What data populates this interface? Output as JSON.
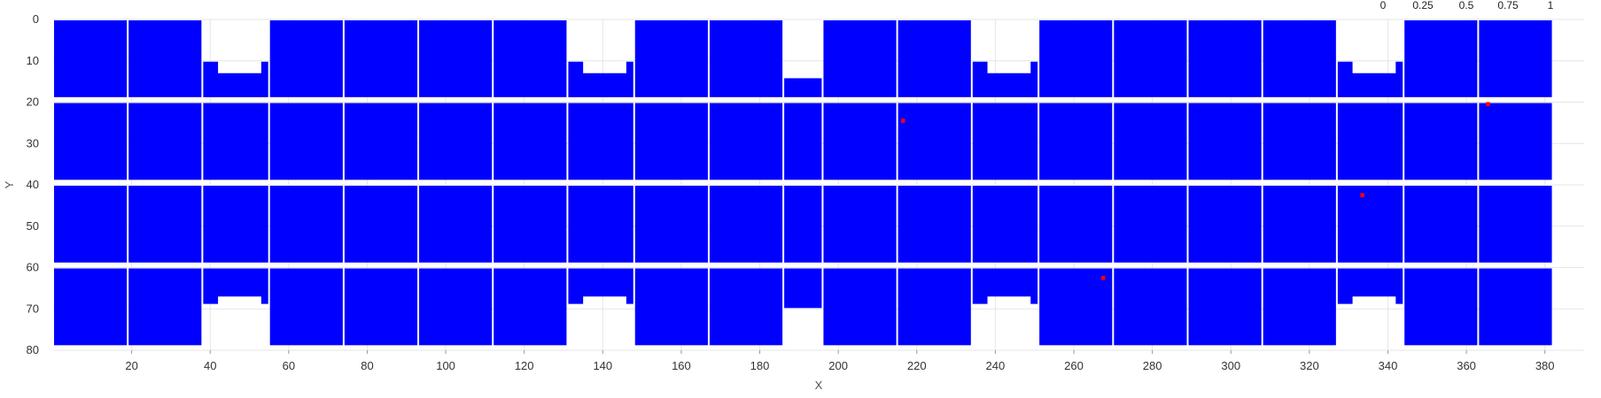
{
  "chart_data": {
    "type": "heatmap",
    "title": "",
    "xlabel": "X",
    "ylabel": "Y",
    "xlim": [
      0,
      390
    ],
    "ylim": [
      0,
      80
    ],
    "y_inverted": true,
    "grid": true,
    "x_ticks": [
      20,
      40,
      60,
      80,
      100,
      120,
      140,
      160,
      180,
      200,
      220,
      240,
      260,
      280,
      300,
      320,
      340,
      360,
      380
    ],
    "y_ticks": [
      0,
      10,
      20,
      30,
      40,
      50,
      60,
      70,
      80
    ],
    "color_scale": {
      "ticks": [
        "0",
        "0.25",
        "0.5",
        "0.75",
        "1"
      ],
      "low_color": "#0000ff",
      "high_color": "#ff0000"
    },
    "module_columns": [
      {
        "x": [
          1,
          19
        ],
        "type": "full"
      },
      {
        "x": [
          20,
          38
        ],
        "type": "full"
      },
      {
        "x": [
          39,
          55
        ],
        "type": "notched"
      },
      {
        "x": [
          56,
          74
        ],
        "type": "full"
      },
      {
        "x": [
          75,
          93
        ],
        "type": "full"
      },
      {
        "x": [
          94,
          112
        ],
        "type": "full"
      },
      {
        "x": [
          113,
          131
        ],
        "type": "full"
      },
      {
        "x": [
          132,
          148
        ],
        "type": "notched"
      },
      {
        "x": [
          149,
          167
        ],
        "type": "full"
      },
      {
        "x": [
          168,
          186
        ],
        "type": "full"
      },
      {
        "x": [
          187,
          196
        ],
        "type": "narrow"
      },
      {
        "x": [
          197,
          215
        ],
        "type": "full"
      },
      {
        "x": [
          216,
          234
        ],
        "type": "full"
      },
      {
        "x": [
          235,
          251
        ],
        "type": "notched"
      },
      {
        "x": [
          252,
          270
        ],
        "type": "full"
      },
      {
        "x": [
          271,
          289
        ],
        "type": "full"
      },
      {
        "x": [
          290,
          308
        ],
        "type": "full"
      },
      {
        "x": [
          309,
          327
        ],
        "type": "full"
      },
      {
        "x": [
          328,
          344
        ],
        "type": "notched"
      },
      {
        "x": [
          345,
          363
        ],
        "type": "full"
      },
      {
        "x": [
          364,
          382
        ],
        "type": "full"
      }
    ],
    "module_rows": [
      [
        1,
        19
      ],
      [
        21,
        39
      ],
      [
        41,
        59
      ],
      [
        61,
        79
      ]
    ],
    "hot_pixels": [
      {
        "x": 217,
        "y": 25,
        "value": 1
      },
      {
        "x": 366,
        "y": 21,
        "value": 1
      },
      {
        "x": 334,
        "y": 43,
        "value": 1
      },
      {
        "x": 268,
        "y": 63,
        "value": 1
      }
    ],
    "background_value": 0
  }
}
